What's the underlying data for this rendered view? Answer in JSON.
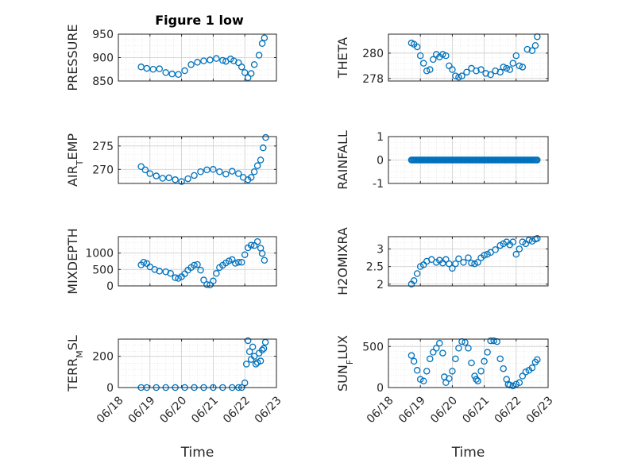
{
  "figure": {
    "title": "Figure 1 low"
  },
  "style": {
    "marker_color": "#0072bd",
    "axis_color": "#262626",
    "grid_color": "#dcdcdc"
  },
  "chart_data": [
    {
      "type": "scatter",
      "ylabel": "PRESSURE",
      "ylim": [
        850,
        950
      ],
      "yticks": [
        850,
        900,
        950
      ],
      "xlabel": "",
      "show_xticklabels": false,
      "xlim": [
        0,
        5
      ],
      "x": [
        0.72,
        0.9,
        1.1,
        1.3,
        1.5,
        1.7,
        1.9,
        2.1,
        2.3,
        2.5,
        2.7,
        2.9,
        3.1,
        3.3,
        3.4,
        3.55,
        3.65,
        3.8,
        3.9,
        4.0,
        4.1,
        4.2,
        4.3,
        4.45,
        4.55,
        4.62
      ],
      "y": [
        880,
        877,
        875,
        876,
        868,
        865,
        864,
        872,
        885,
        890,
        893,
        895,
        898,
        894,
        892,
        897,
        893,
        889,
        880,
        868,
        857,
        866,
        885,
        905,
        930,
        942
      ]
    },
    {
      "type": "scatter",
      "ylabel": "THETA",
      "ylim": [
        277.8,
        281.5
      ],
      "yticks": [
        278,
        280
      ],
      "xlabel": "",
      "show_xticklabels": false,
      "xlim": [
        0,
        5
      ],
      "x": [
        0.72,
        0.8,
        0.9,
        1.0,
        1.1,
        1.2,
        1.3,
        1.4,
        1.5,
        1.6,
        1.7,
        1.8,
        1.9,
        2.0,
        2.1,
        2.2,
        2.3,
        2.45,
        2.6,
        2.75,
        2.9,
        3.05,
        3.2,
        3.35,
        3.5,
        3.6,
        3.7,
        3.8,
        3.9,
        4.0,
        4.1,
        4.2,
        4.35,
        4.5,
        4.6,
        4.66
      ],
      "y": [
        280.8,
        280.7,
        280.5,
        279.8,
        279.2,
        278.6,
        278.7,
        279.5,
        279.9,
        279.7,
        279.9,
        279.8,
        279.0,
        278.7,
        278.2,
        278.1,
        278.2,
        278.5,
        278.8,
        278.6,
        278.7,
        278.4,
        278.3,
        278.6,
        278.5,
        278.9,
        278.8,
        278.7,
        279.2,
        279.8,
        279.0,
        278.9,
        280.3,
        280.2,
        280.6,
        281.3
      ]
    },
    {
      "type": "scatter",
      "ylabel": "AIR_TEMP",
      "ylim": [
        267,
        277
      ],
      "yticks": [
        270,
        275
      ],
      "xlabel": "",
      "show_xticklabels": false,
      "xlim": [
        0,
        5
      ],
      "x": [
        0.72,
        0.85,
        1.0,
        1.2,
        1.4,
        1.6,
        1.8,
        2.0,
        2.2,
        2.4,
        2.6,
        2.8,
        3.0,
        3.2,
        3.4,
        3.6,
        3.8,
        3.95,
        4.1,
        4.2,
        4.3,
        4.4,
        4.5,
        4.58,
        4.66
      ],
      "y": [
        270.6,
        269.9,
        269.1,
        268.6,
        268.1,
        268.2,
        267.8,
        267.4,
        268.0,
        268.7,
        269.5,
        269.9,
        270.0,
        269.5,
        269.0,
        269.6,
        269.1,
        268.3,
        267.8,
        268.3,
        269.5,
        270.8,
        272.0,
        274.6,
        276.8
      ]
    },
    {
      "type": "scatter",
      "ylabel": "RAINFALL",
      "ylim": [
        -1,
        1
      ],
      "yticks": [
        -1,
        0,
        1
      ],
      "xlabel": "",
      "show_xticklabels": false,
      "xlim": [
        0,
        5
      ],
      "x_range": [
        0.72,
        4.66
      ],
      "constant_y": 0,
      "point_count": 120
    },
    {
      "type": "scatter",
      "ylabel": "MIXDEPTH",
      "ylim": [
        0,
        1500
      ],
      "yticks": [
        0,
        500,
        1000
      ],
      "xlabel": "",
      "show_xticklabels": false,
      "xlim": [
        0,
        5
      ],
      "x": [
        0.72,
        0.8,
        0.9,
        1.0,
        1.15,
        1.3,
        1.5,
        1.65,
        1.8,
        1.9,
        2.0,
        2.1,
        2.2,
        2.3,
        2.4,
        2.5,
        2.6,
        2.7,
        2.8,
        2.9,
        3.0,
        3.1,
        3.2,
        3.3,
        3.4,
        3.5,
        3.6,
        3.7,
        3.8,
        3.9,
        4.0,
        4.1,
        4.2,
        4.3,
        4.4,
        4.5,
        4.55,
        4.62
      ],
      "y": [
        640,
        720,
        680,
        580,
        500,
        450,
        430,
        380,
        250,
        230,
        280,
        370,
        480,
        560,
        630,
        650,
        480,
        180,
        40,
        30,
        150,
        380,
        560,
        630,
        700,
        760,
        800,
        690,
        720,
        720,
        950,
        1160,
        1240,
        1230,
        1350,
        1150,
        990,
        780
      ]
    },
    {
      "type": "scatter",
      "ylabel": "H2OMIXRA",
      "ylim": [
        1.95,
        3.35
      ],
      "yticks": [
        2,
        2.5,
        3
      ],
      "xlabel": "",
      "show_xticklabels": false,
      "xlim": [
        0,
        5
      ],
      "x": [
        0.72,
        0.8,
        0.9,
        1.0,
        1.1,
        1.2,
        1.35,
        1.5,
        1.6,
        1.7,
        1.8,
        1.9,
        2.0,
        2.1,
        2.2,
        2.35,
        2.5,
        2.6,
        2.7,
        2.8,
        2.9,
        3.0,
        3.1,
        3.2,
        3.35,
        3.5,
        3.6,
        3.7,
        3.8,
        3.9,
        4.0,
        4.1,
        4.2,
        4.3,
        4.4,
        4.5,
        4.6,
        4.66
      ],
      "y": [
        2.0,
        2.1,
        2.3,
        2.5,
        2.55,
        2.65,
        2.7,
        2.62,
        2.68,
        2.6,
        2.7,
        2.58,
        2.45,
        2.58,
        2.72,
        2.62,
        2.75,
        2.6,
        2.58,
        2.62,
        2.75,
        2.82,
        2.85,
        2.9,
        2.98,
        3.1,
        3.15,
        3.2,
        3.12,
        3.2,
        2.85,
        3.0,
        3.2,
        3.15,
        3.25,
        3.22,
        3.28,
        3.3
      ]
    },
    {
      "type": "scatter",
      "ylabel": "TERR_MSL",
      "ylim": [
        0,
        310
      ],
      "yticks": [
        0,
        200
      ],
      "xlabel": "Time",
      "show_xticklabels": true,
      "xlim": [
        0,
        5
      ],
      "xticklabels": [
        "06/18",
        "06/19",
        "06/20",
        "06/21",
        "06/22",
        "06/23"
      ],
      "x": [
        0.72,
        0.9,
        1.2,
        1.5,
        1.8,
        2.1,
        2.4,
        2.7,
        3.0,
        3.3,
        3.6,
        3.8,
        3.9,
        4.0,
        4.05,
        4.1,
        4.15,
        4.2,
        4.25,
        4.3,
        4.35,
        4.4,
        4.45,
        4.5,
        4.55,
        4.6,
        4.65
      ],
      "y": [
        0,
        0,
        0,
        0,
        0,
        0,
        0,
        0,
        0,
        0,
        0,
        0,
        0,
        30,
        150,
        300,
        230,
        180,
        260,
        200,
        150,
        160,
        220,
        170,
        240,
        250,
        290
      ]
    },
    {
      "type": "scatter",
      "ylabel": "SUN_FLUX",
      "ylim": [
        0,
        590
      ],
      "yticks": [
        0,
        500
      ],
      "xlabel": "Time",
      "show_xticklabels": true,
      "xlim": [
        0,
        5
      ],
      "xticklabels": [
        "06/18",
        "06/19",
        "06/20",
        "06/21",
        "06/22",
        "06/23"
      ],
      "x": [
        0.72,
        0.8,
        0.9,
        1.0,
        1.1,
        1.2,
        1.3,
        1.4,
        1.5,
        1.6,
        1.7,
        1.75,
        1.8,
        1.9,
        2.0,
        2.1,
        2.2,
        2.3,
        2.4,
        2.5,
        2.6,
        2.7,
        2.75,
        2.8,
        2.9,
        3.0,
        3.1,
        3.2,
        3.3,
        3.4,
        3.5,
        3.6,
        3.7,
        3.75,
        3.8,
        3.9,
        4.0,
        4.1,
        4.2,
        4.3,
        4.4,
        4.5,
        4.6,
        4.66
      ],
      "y": [
        390,
        320,
        210,
        100,
        80,
        200,
        350,
        430,
        480,
        540,
        420,
        130,
        60,
        110,
        200,
        350,
        480,
        560,
        550,
        480,
        300,
        140,
        100,
        80,
        200,
        320,
        430,
        570,
        570,
        560,
        350,
        230,
        100,
        40,
        30,
        20,
        40,
        60,
        140,
        190,
        210,
        240,
        310,
        340
      ]
    }
  ]
}
